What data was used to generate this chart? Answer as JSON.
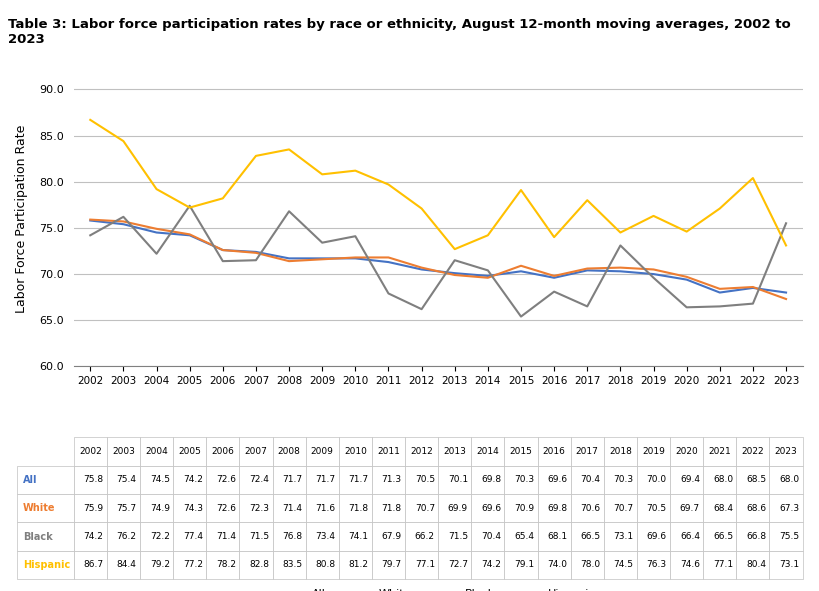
{
  "title": "Table 3: Labor force participation rates by race or ethnicity, August 12-month moving averages, 2002 to 2023",
  "ylabel": "Labor Force Participation Rate",
  "years": [
    2002,
    2003,
    2004,
    2005,
    2006,
    2007,
    2008,
    2009,
    2010,
    2011,
    2012,
    2013,
    2014,
    2015,
    2016,
    2017,
    2018,
    2019,
    2020,
    2021,
    2022,
    2023
  ],
  "series": {
    "All": [
      75.8,
      75.4,
      74.5,
      74.2,
      72.6,
      72.4,
      71.7,
      71.7,
      71.7,
      71.3,
      70.5,
      70.1,
      69.8,
      70.3,
      69.6,
      70.4,
      70.3,
      70.0,
      69.4,
      68.0,
      68.5,
      68.0
    ],
    "White": [
      75.9,
      75.7,
      74.9,
      74.3,
      72.6,
      72.3,
      71.4,
      71.6,
      71.8,
      71.8,
      70.7,
      69.9,
      69.6,
      70.9,
      69.8,
      70.6,
      70.7,
      70.5,
      69.7,
      68.4,
      68.6,
      67.3
    ],
    "Black": [
      74.2,
      76.2,
      72.2,
      77.4,
      71.4,
      71.5,
      76.8,
      73.4,
      74.1,
      67.9,
      66.2,
      71.5,
      70.4,
      65.4,
      68.1,
      66.5,
      73.1,
      69.6,
      66.4,
      66.5,
      66.8,
      75.5
    ],
    "Hispanic": [
      86.7,
      84.4,
      79.2,
      77.2,
      78.2,
      82.8,
      83.5,
      80.8,
      81.2,
      79.7,
      77.1,
      72.7,
      74.2,
      79.1,
      74.0,
      78.0,
      74.5,
      76.3,
      74.6,
      77.1,
      80.4,
      73.1
    ]
  },
  "colors": {
    "All": "#4472C4",
    "White": "#ED7D31",
    "Black": "#7F7F7F",
    "Hispanic": "#FFC000"
  },
  "ylim": [
    60.0,
    92.0
  ],
  "yticks": [
    60.0,
    65.0,
    70.0,
    75.0,
    80.0,
    85.0,
    90.0
  ],
  "bg_color": "#FFFFFF",
  "plot_bg_color": "#FFFFFF",
  "grid_color": "#C0C0C0"
}
